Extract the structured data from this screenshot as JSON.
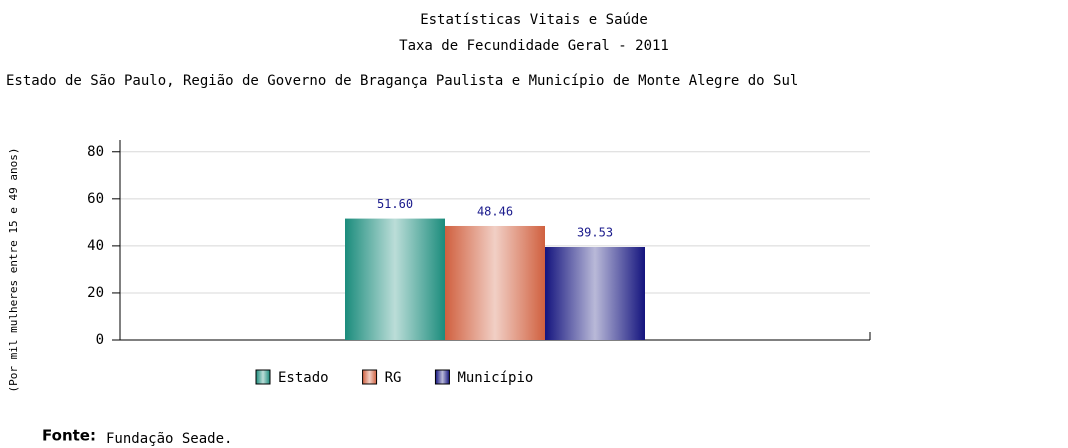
{
  "chart_data": {
    "type": "bar",
    "title": [
      "Estatísticas Vitais e Saúde",
      "Taxa de Fecundidade Geral - 2011"
    ],
    "subtitle": "Estado de São Paulo, Região de Governo de Bragança Paulista e Município de Monte Alegre do Sul",
    "y_label": "(Por mil mulheres entre 15 e 49 anos)",
    "categories": [
      null
    ],
    "series": [
      {
        "name": "Estado",
        "color": "#1b8c7c",
        "values": [
          51.6
        ],
        "value_labels": [
          "51.60"
        ]
      },
      {
        "name": "RG",
        "color": "#d0603f",
        "values": [
          48.46
        ],
        "value_labels": [
          "48.46"
        ]
      },
      {
        "name": "Município",
        "color": "#14147e",
        "values": [
          39.53
        ],
        "value_labels": [
          "39.53"
        ]
      }
    ],
    "ylim": [
      0,
      85
    ],
    "yticks": [
      0,
      20,
      40,
      60,
      80
    ],
    "grid": true,
    "source_label": "Fonte:",
    "source": "Fundação Seade."
  }
}
